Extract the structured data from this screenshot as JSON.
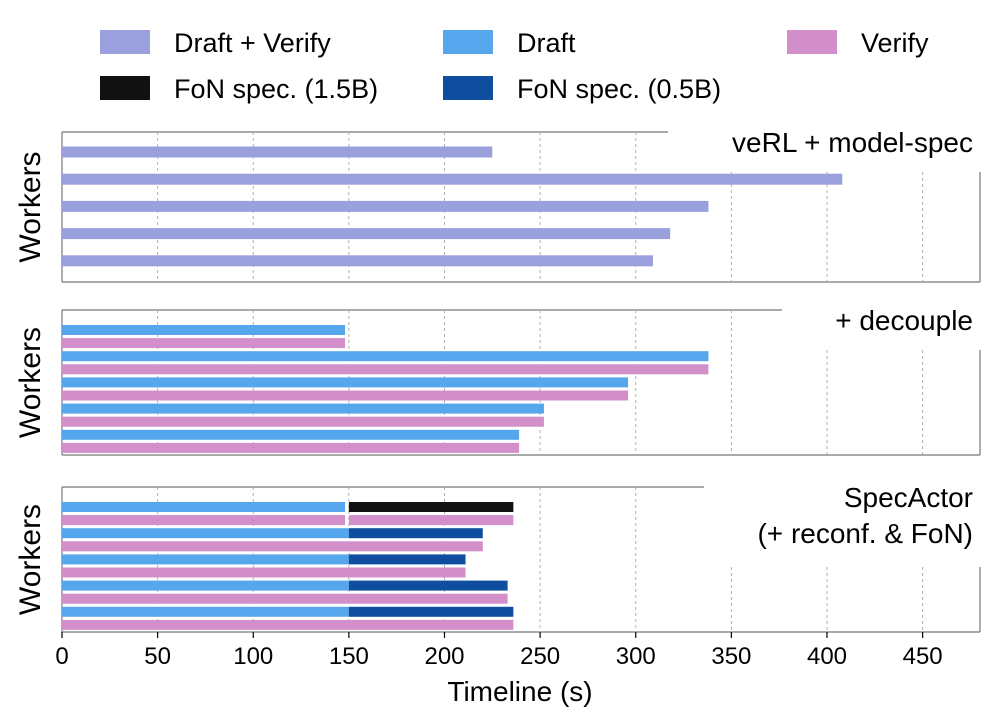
{
  "chart_data": {
    "type": "timeline",
    "xlabel": "Timeline (s)",
    "ylabel": "Workers",
    "xlim": [
      0,
      480
    ],
    "xticks": [
      0,
      50,
      100,
      150,
      200,
      250,
      300,
      350,
      400,
      450
    ],
    "grid": "vertical dotted",
    "legend": [
      {
        "key": "draft_verify",
        "name": "Draft + Verify",
        "color": "#9aa0dc"
      },
      {
        "key": "draft",
        "name": "Draft",
        "color": "#55a6ec"
      },
      {
        "key": "verify",
        "name": "Verify",
        "color": "#d38fca"
      },
      {
        "key": "fon15",
        "name": "FoN spec. (1.5B)",
        "color": "#111111"
      },
      {
        "key": "fon05",
        "name": "FoN spec. (0.5B)",
        "color": "#0f4d9e"
      }
    ],
    "panels": [
      {
        "title_lines": [
          "veRL + model-spec"
        ],
        "workers": [
          [
            {
              "kind": "draft_verify",
              "start": 0,
              "end": 225
            }
          ],
          [
            {
              "kind": "draft_verify",
              "start": 0,
              "end": 408
            }
          ],
          [
            {
              "kind": "draft_verify",
              "start": 0,
              "end": 338
            }
          ],
          [
            {
              "kind": "draft_verify",
              "start": 0,
              "end": 318
            }
          ],
          [
            {
              "kind": "draft_verify",
              "start": 0,
              "end": 309
            }
          ]
        ]
      },
      {
        "title_lines": [
          "+ decouple"
        ],
        "workers": [
          [
            {
              "kind": "draft",
              "start": 0,
              "end": 148
            }
          ],
          [
            {
              "kind": "verify",
              "start": 0,
              "end": 148
            }
          ],
          [
            {
              "kind": "draft",
              "start": 0,
              "end": 338
            }
          ],
          [
            {
              "kind": "verify",
              "start": 0,
              "end": 338
            }
          ],
          [
            {
              "kind": "draft",
              "start": 0,
              "end": 296
            }
          ],
          [
            {
              "kind": "verify",
              "start": 0,
              "end": 296
            }
          ],
          [
            {
              "kind": "draft",
              "start": 0,
              "end": 252
            }
          ],
          [
            {
              "kind": "verify",
              "start": 0,
              "end": 252
            }
          ],
          [
            {
              "kind": "draft",
              "start": 0,
              "end": 239
            }
          ],
          [
            {
              "kind": "verify",
              "start": 0,
              "end": 239
            }
          ]
        ]
      },
      {
        "title_lines": [
          "SpecActor",
          "(+ reconf. & FoN)"
        ],
        "workers": [
          [
            {
              "kind": "draft",
              "start": 0,
              "end": 148
            },
            {
              "kind": "fon15",
              "start": 150,
              "end": 236
            }
          ],
          [
            {
              "kind": "verify",
              "start": 0,
              "end": 148
            },
            {
              "kind": "verify",
              "start": 150,
              "end": 236
            }
          ],
          [
            {
              "kind": "draft",
              "start": 0,
              "end": 150
            },
            {
              "kind": "fon05",
              "start": 150,
              "end": 220
            }
          ],
          [
            {
              "kind": "verify",
              "start": 0,
              "end": 220
            }
          ],
          [
            {
              "kind": "draft",
              "start": 0,
              "end": 150
            },
            {
              "kind": "fon05",
              "start": 150,
              "end": 211
            }
          ],
          [
            {
              "kind": "verify",
              "start": 0,
              "end": 211
            }
          ],
          [
            {
              "kind": "draft",
              "start": 0,
              "end": 150
            },
            {
              "kind": "fon05",
              "start": 150,
              "end": 233
            }
          ],
          [
            {
              "kind": "verify",
              "start": 0,
              "end": 233
            }
          ],
          [
            {
              "kind": "draft",
              "start": 0,
              "end": 150
            },
            {
              "kind": "fon05",
              "start": 150,
              "end": 236
            }
          ],
          [
            {
              "kind": "verify",
              "start": 0,
              "end": 236
            }
          ]
        ]
      }
    ]
  }
}
